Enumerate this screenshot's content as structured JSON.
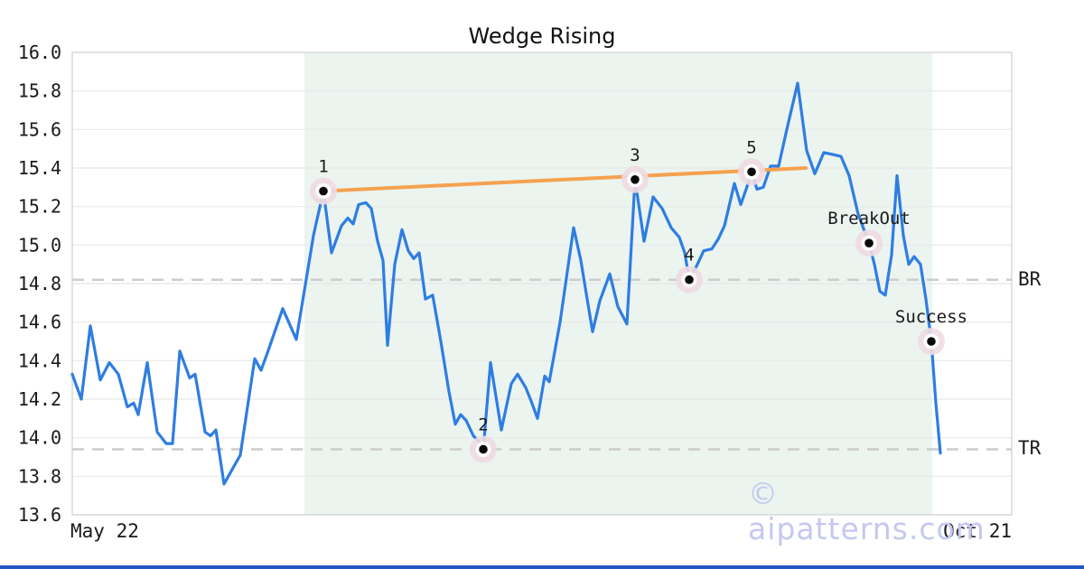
{
  "title": "Wedge Rising",
  "watermark": "© aipatterns.com",
  "x_axis_labels": {
    "start": "May 22",
    "end": "Oct 21"
  },
  "hline_labels": {
    "br": "BR",
    "tr": "TR"
  },
  "colors": {
    "price_line": "#2e7de2",
    "trend_line": "#f6a14f",
    "marker_halo": "#eedbe2",
    "marker_ring": "#ffffff",
    "marker_dot": "#0a0a0a",
    "pattern_region": "#ebf4ef",
    "grid": "#e8e8e8",
    "spine": "#d9d9d9",
    "dashed_line": "#cccccc",
    "text": "#1a1a1a",
    "watermark": "#c4c8f0",
    "bottom_bar": "#2356c7"
  },
  "chart_data": {
    "type": "line",
    "title": "Wedge Rising",
    "xlabel": "",
    "ylabel": "",
    "x_range_labels": [
      "May 22",
      "Oct 21"
    ],
    "y_axis": {
      "min": 13.6,
      "max": 16.0,
      "tick_step": 0.2
    },
    "grid": "horizontal",
    "pattern_region": {
      "x_start": 0.2471,
      "x_end": 0.9154
    },
    "hlines": [
      {
        "label": "BR",
        "value": 14.82
      },
      {
        "label": "TR",
        "value": 13.94
      }
    ],
    "trendline": {
      "x1": 0.2673,
      "y1": 15.28,
      "x2": 0.7808,
      "y2": 15.4
    },
    "annotations": [
      {
        "label": "1",
        "x": 0.2673,
        "y": 15.28
      },
      {
        "label": "2",
        "x": 0.4375,
        "y": 13.94
      },
      {
        "label": "3",
        "x": 0.599,
        "y": 15.34
      },
      {
        "label": "4",
        "x": 0.6567,
        "y": 14.82
      },
      {
        "label": "5",
        "x": 0.7231,
        "y": 15.38
      },
      {
        "label": "BreakOut",
        "x": 0.8481,
        "y": 15.01
      },
      {
        "label": "Success",
        "x": 0.9144,
        "y": 14.5
      }
    ],
    "series": [
      {
        "name": "price",
        "points": [
          [
            0.0,
            14.33
          ],
          [
            0.0096,
            14.2
          ],
          [
            0.0192,
            14.58
          ],
          [
            0.0298,
            14.3
          ],
          [
            0.0394,
            14.39
          ],
          [
            0.049,
            14.33
          ],
          [
            0.0587,
            14.16
          ],
          [
            0.0654,
            14.18
          ],
          [
            0.0702,
            14.12
          ],
          [
            0.0798,
            14.39
          ],
          [
            0.0904,
            14.03
          ],
          [
            0.1,
            13.97
          ],
          [
            0.1067,
            13.97
          ],
          [
            0.1144,
            14.45
          ],
          [
            0.125,
            14.31
          ],
          [
            0.1308,
            14.33
          ],
          [
            0.1413,
            14.03
          ],
          [
            0.1471,
            14.01
          ],
          [
            0.1529,
            14.04
          ],
          [
            0.1615,
            13.76
          ],
          [
            0.1731,
            13.86
          ],
          [
            0.1788,
            13.91
          ],
          [
            0.1942,
            14.41
          ],
          [
            0.201,
            14.35
          ],
          [
            0.2077,
            14.44
          ],
          [
            0.224,
            14.67
          ],
          [
            0.2385,
            14.51
          ],
          [
            0.2567,
            15.05
          ],
          [
            0.2673,
            15.28
          ],
          [
            0.276,
            14.96
          ],
          [
            0.2865,
            15.1
          ],
          [
            0.2933,
            15.14
          ],
          [
            0.299,
            15.11
          ],
          [
            0.3048,
            15.21
          ],
          [
            0.3125,
            15.22
          ],
          [
            0.3183,
            15.19
          ],
          [
            0.325,
            15.02
          ],
          [
            0.3308,
            14.92
          ],
          [
            0.3356,
            14.48
          ],
          [
            0.3433,
            14.9
          ],
          [
            0.351,
            15.08
          ],
          [
            0.3577,
            14.97
          ],
          [
            0.3635,
            14.93
          ],
          [
            0.3692,
            14.96
          ],
          [
            0.376,
            14.72
          ],
          [
            0.3837,
            14.74
          ],
          [
            0.3923,
            14.5
          ],
          [
            0.401,
            14.24
          ],
          [
            0.4077,
            14.07
          ],
          [
            0.4135,
            14.12
          ],
          [
            0.4192,
            14.09
          ],
          [
            0.4269,
            14.01
          ],
          [
            0.4327,
            13.98
          ],
          [
            0.4375,
            13.94
          ],
          [
            0.4452,
            14.39
          ],
          [
            0.4567,
            14.04
          ],
          [
            0.4673,
            14.28
          ],
          [
            0.474,
            14.33
          ],
          [
            0.4827,
            14.26
          ],
          [
            0.4885,
            14.19
          ],
          [
            0.4952,
            14.1
          ],
          [
            0.5029,
            14.32
          ],
          [
            0.5077,
            14.29
          ],
          [
            0.5192,
            14.6
          ],
          [
            0.5337,
            15.09
          ],
          [
            0.5413,
            14.92
          ],
          [
            0.5481,
            14.72
          ],
          [
            0.5538,
            14.55
          ],
          [
            0.5615,
            14.71
          ],
          [
            0.5721,
            14.85
          ],
          [
            0.5808,
            14.68
          ],
          [
            0.5904,
            14.59
          ],
          [
            0.599,
            15.34
          ],
          [
            0.6087,
            15.02
          ],
          [
            0.6183,
            15.25
          ],
          [
            0.6279,
            15.19
          ],
          [
            0.6375,
            15.09
          ],
          [
            0.6462,
            15.04
          ],
          [
            0.6519,
            14.96
          ],
          [
            0.6567,
            14.82
          ],
          [
            0.6644,
            14.89
          ],
          [
            0.6721,
            14.97
          ],
          [
            0.6808,
            14.98
          ],
          [
            0.6875,
            15.03
          ],
          [
            0.6942,
            15.1
          ],
          [
            0.7048,
            15.32
          ],
          [
            0.7115,
            15.21
          ],
          [
            0.7173,
            15.29
          ],
          [
            0.7231,
            15.38
          ],
          [
            0.7288,
            15.29
          ],
          [
            0.7356,
            15.3
          ],
          [
            0.7433,
            15.41
          ],
          [
            0.7519,
            15.41
          ],
          [
            0.7606,
            15.6
          ],
          [
            0.7721,
            15.84
          ],
          [
            0.7817,
            15.49
          ],
          [
            0.7904,
            15.37
          ],
          [
            0.8,
            15.48
          ],
          [
            0.8096,
            15.47
          ],
          [
            0.8183,
            15.46
          ],
          [
            0.8269,
            15.36
          ],
          [
            0.8365,
            15.16
          ],
          [
            0.8481,
            15.01
          ],
          [
            0.8538,
            14.9
          ],
          [
            0.8596,
            14.76
          ],
          [
            0.8654,
            14.74
          ],
          [
            0.8721,
            14.95
          ],
          [
            0.8779,
            15.36
          ],
          [
            0.8846,
            15.05
          ],
          [
            0.8904,
            14.9
          ],
          [
            0.8962,
            14.94
          ],
          [
            0.9029,
            14.9
          ],
          [
            0.9087,
            14.72
          ],
          [
            0.9144,
            14.5
          ],
          [
            0.9192,
            14.18
          ],
          [
            0.924,
            13.92
          ]
        ]
      }
    ]
  }
}
